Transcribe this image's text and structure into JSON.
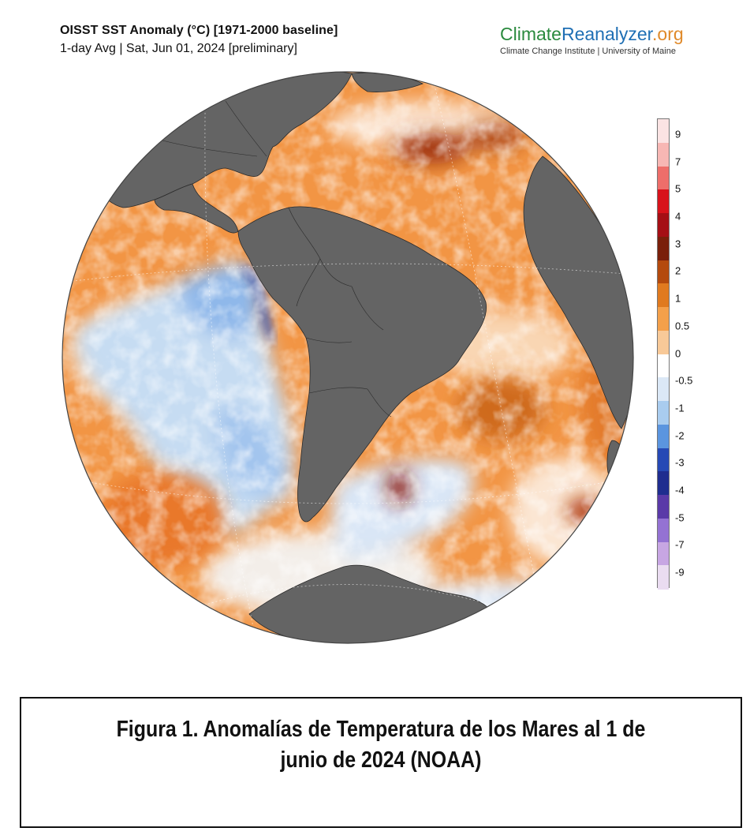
{
  "header": {
    "title": "OISST SST Anomaly (°C) [1971-2000 baseline]",
    "subtitle": "1-day Avg | Sat, Jun 01, 2024 [preliminary]"
  },
  "brand": {
    "logo_part_1": "Climate",
    "logo_part_2": "Reanalyzer",
    "logo_part_3": ".org",
    "tagline": "Climate Change Institute | University of Maine"
  },
  "colorbar": {
    "ticks": [
      "9",
      "7",
      "5",
      "4",
      "3",
      "2",
      "1",
      "0.5",
      "0",
      "-0.5",
      "-1",
      "-2",
      "-3",
      "-4",
      "-5",
      "-7",
      "-9"
    ],
    "colors": [
      "#fbe3e3",
      "#f7b7b4",
      "#ee6e6a",
      "#d8131b",
      "#a50f15",
      "#7a1f0a",
      "#b44a0d",
      "#e07a1f",
      "#f4a04a",
      "#f8c998",
      "#ffffff",
      "#dbe8f6",
      "#a9ccef",
      "#5b95df",
      "#2649b5",
      "#1f2d8f",
      "#5a3aa8",
      "#9472d3",
      "#c7a6e3",
      "#eadcf1"
    ],
    "unit": "°C"
  },
  "legend_colors": {
    "land": "#646464",
    "ocean_warm": "#f08a35",
    "ocean_warm_strong": "#c2560f",
    "ocean_hot": "#7a1a0a",
    "ocean_cool": "#a9ccef",
    "ocean_cold": "#2649b5",
    "ocean_neutral": "#f5f0ec"
  },
  "caption": {
    "line": "Figura 1. Anomalías de Temperatura de los Mares al 1 de junio de 2024 (NOAA)"
  }
}
